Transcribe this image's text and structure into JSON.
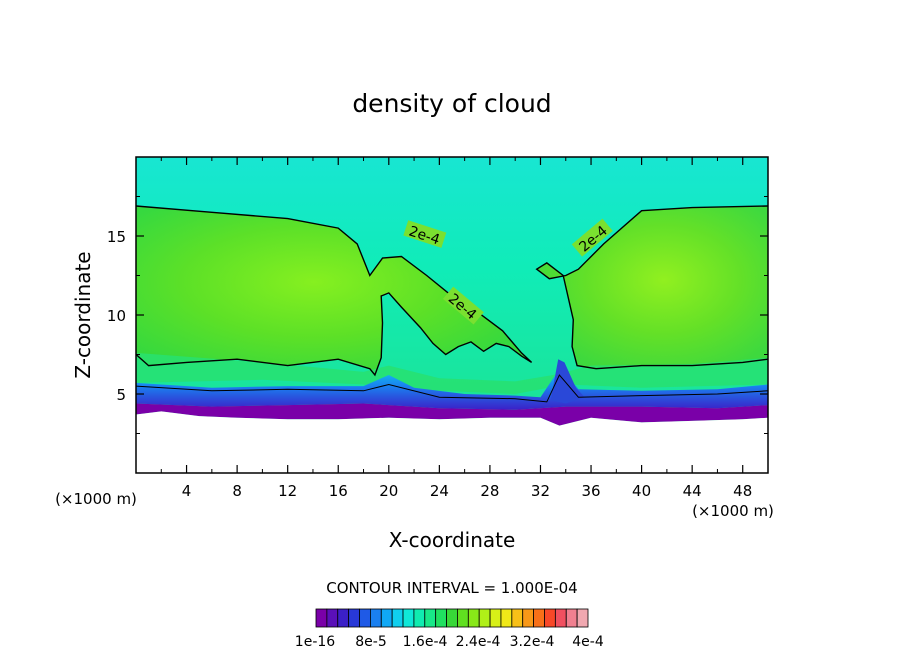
{
  "chart_data": {
    "type": "heatmap",
    "title": "density of cloud",
    "xlabel": "X-coordinate",
    "ylabel": "Z-coordinate",
    "x_unit": "(×1000 m)",
    "y_unit": "(×1000 m)",
    "xlim": [
      0,
      50
    ],
    "ylim": [
      0,
      20
    ],
    "xticks": [
      4,
      8,
      12,
      16,
      20,
      24,
      28,
      32,
      36,
      40,
      44,
      48
    ],
    "yticks": [
      5,
      10,
      15
    ],
    "contour_interval_text": "CONTOUR INTERVAL = 1.000E-04",
    "contour_labels": [
      "2e-4",
      "2e-4",
      "2e-4"
    ],
    "colorbar": {
      "tick_labels": [
        "1e-16",
        "8e-5",
        "1.6e-4",
        "2.4e-4",
        "3.2e-4",
        "4e-4"
      ],
      "colors": [
        "#7a00a8",
        "#5a10b8",
        "#3b20c8",
        "#2838d8",
        "#1f5ae6",
        "#1a80f0",
        "#10a8f5",
        "#10cfee",
        "#10e8d8",
        "#10ecb0",
        "#18e888",
        "#20e060",
        "#38d838",
        "#60e020",
        "#88e818",
        "#b0f018",
        "#d8f018",
        "#f0e818",
        "#f8c018",
        "#f89818",
        "#f87018",
        "#f84828",
        "#f05060",
        "#f08090",
        "#f0a8b0"
      ]
    },
    "cloud_base_km": [
      [
        0,
        3.7
      ],
      [
        2,
        3.9
      ],
      [
        5,
        3.6
      ],
      [
        8,
        3.5
      ],
      [
        12,
        3.4
      ],
      [
        16,
        3.4
      ],
      [
        20,
        3.5
      ],
      [
        24,
        3.4
      ],
      [
        28,
        3.5
      ],
      [
        32,
        3.5
      ],
      [
        33.5,
        3.0
      ],
      [
        36,
        3.5
      ],
      [
        40,
        3.2
      ],
      [
        44,
        3.3
      ],
      [
        48,
        3.4
      ],
      [
        50,
        3.5
      ]
    ],
    "contour_2e-4_outer": [
      [
        0,
        16.9
      ],
      [
        6,
        16.5
      ],
      [
        12,
        16.1
      ],
      [
        16,
        15.5
      ],
      [
        17.5,
        14.5
      ],
      [
        18.5,
        12.5
      ],
      [
        19.5,
        13.6
      ],
      [
        21,
        13.7
      ],
      [
        23,
        12.5
      ],
      [
        25,
        11.2
      ],
      [
        27,
        10.2
      ],
      [
        29,
        9.0
      ],
      [
        30.5,
        7.6
      ],
      [
        31.3,
        7.0
      ],
      [
        30.5,
        7.4
      ],
      [
        29.5,
        8.0
      ],
      [
        28.5,
        8.2
      ],
      [
        27.5,
        7.7
      ],
      [
        26.5,
        8.3
      ],
      [
        25.5,
        8.0
      ],
      [
        24.5,
        7.5
      ],
      [
        23.5,
        8.2
      ],
      [
        22.5,
        9.2
      ],
      [
        21,
        10.5
      ],
      [
        20,
        11.4
      ],
      [
        19.4,
        11.2
      ],
      [
        19.5,
        9.5
      ],
      [
        19.4,
        7.3
      ],
      [
        18.9,
        6.2
      ],
      [
        18.5,
        6.6
      ],
      [
        16,
        7.2
      ],
      [
        12,
        6.8
      ],
      [
        8,
        7.2
      ],
      [
        4,
        7.0
      ],
      [
        1,
        6.8
      ],
      [
        0,
        7.5
      ]
    ],
    "contour_2e-4_right": [
      [
        50,
        16.9
      ],
      [
        44,
        16.8
      ],
      [
        40,
        16.6
      ],
      [
        37,
        14.5
      ],
      [
        35,
        12.9
      ],
      [
        34,
        12.5
      ],
      [
        32.7,
        12.3
      ],
      [
        31.7,
        12.9
      ],
      [
        32.5,
        13.3
      ],
      [
        33.8,
        12.5
      ],
      [
        34.6,
        9.7
      ],
      [
        34.5,
        8.0
      ],
      [
        34.9,
        6.8
      ],
      [
        36.4,
        6.6
      ],
      [
        40,
        6.8
      ],
      [
        44,
        6.8
      ],
      [
        48,
        7.0
      ],
      [
        50,
        7.2
      ]
    ]
  }
}
